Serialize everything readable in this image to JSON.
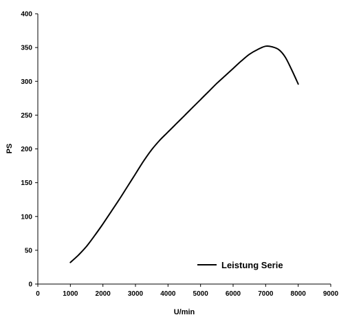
{
  "chart_data": {
    "type": "line",
    "title": "",
    "xlabel": "U/min",
    "ylabel": "PS",
    "xlim": [
      0,
      9000
    ],
    "ylim": [
      0,
      400
    ],
    "xticks": [
      0,
      1000,
      2000,
      3000,
      4000,
      5000,
      6000,
      7000,
      8000,
      9000
    ],
    "yticks": [
      0,
      50,
      100,
      150,
      200,
      250,
      300,
      350,
      400
    ],
    "grid": false,
    "legend_position": "bottom-right",
    "series": [
      {
        "name": "Leistung Serie",
        "color": "#000000",
        "x": [
          1000,
          1250,
          1500,
          1750,
          2000,
          2250,
          2500,
          2750,
          3000,
          3250,
          3500,
          3750,
          4000,
          4250,
          4500,
          4750,
          5000,
          5250,
          5500,
          5750,
          6000,
          6250,
          6500,
          6750,
          7000,
          7200,
          7400,
          7600,
          7800,
          8000
        ],
        "y": [
          32,
          43,
          56,
          72,
          89,
          107,
          125,
          144,
          163,
          182,
          199,
          213,
          225,
          237,
          249,
          261,
          273,
          285,
          297,
          308,
          319,
          330,
          340,
          347,
          352,
          351,
          347,
          336,
          317,
          296
        ]
      }
    ]
  }
}
